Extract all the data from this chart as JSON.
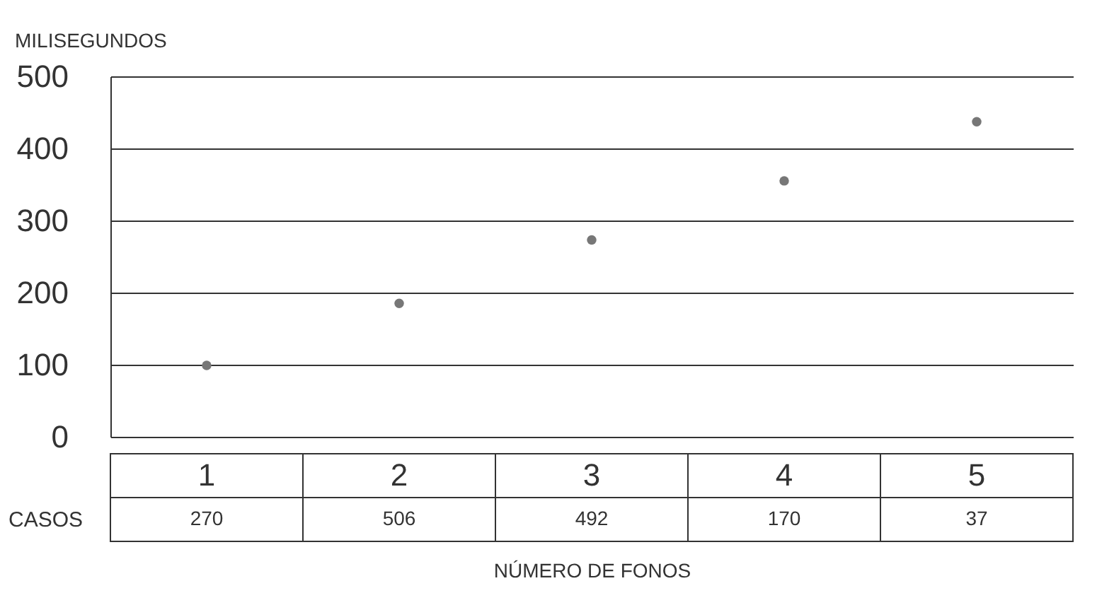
{
  "chart_data": {
    "type": "scatter",
    "categories": [
      "1",
      "2",
      "3",
      "4",
      "5"
    ],
    "values": [
      99,
      185,
      273,
      355,
      437
    ],
    "color": "#777777",
    "ylabel": "MILISEGUNDOS",
    "xlabel": "NÚMERO DE FONOS",
    "ylim": [
      0,
      500
    ],
    "yticks": [
      0,
      100,
      200,
      300,
      400,
      500
    ],
    "grid": "y",
    "marker": "circle",
    "legend": false,
    "annotations": [
      "CASOS",
      "270",
      "506",
      "492",
      "170",
      "37"
    ]
  }
}
